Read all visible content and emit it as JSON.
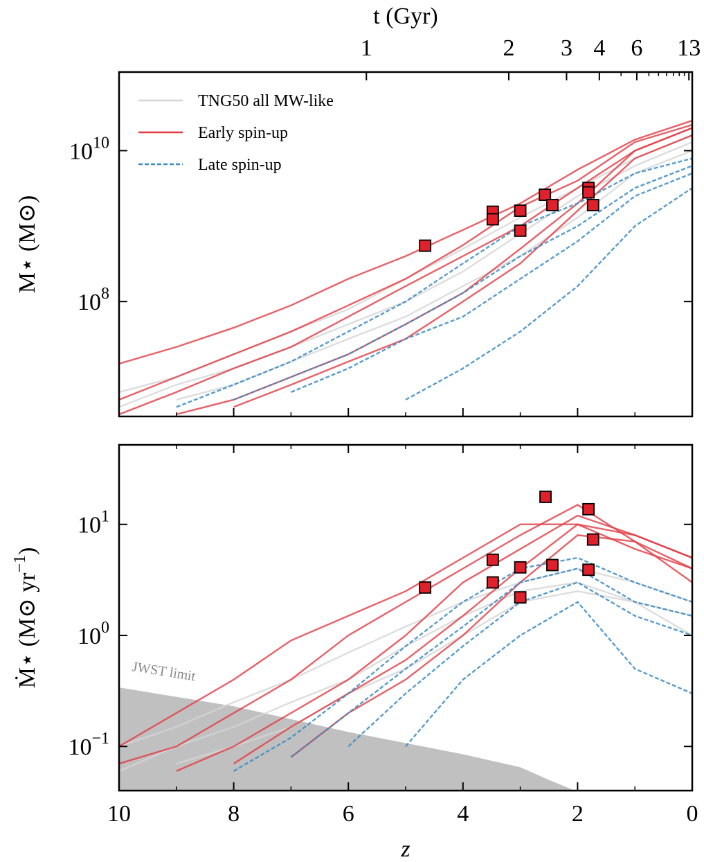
{
  "chart_data": [
    {
      "type": "line",
      "top_xlabel": "t (Gyr)",
      "top_xticks": [
        1,
        2,
        3,
        4,
        6,
        13
      ],
      "top_xminor": [
        5,
        7,
        8,
        9,
        10,
        11,
        12
      ],
      "ylabel": "M⋆ (M⊙)",
      "scale": "log",
      "xlim": [
        10,
        0
      ],
      "ylim": [
        3000000,
        110000000000
      ],
      "xticks": [
        10,
        8,
        6,
        4,
        2,
        0
      ],
      "xminor": [
        9,
        7,
        5,
        3,
        1
      ],
      "yticks": [
        {
          "value": 100000000,
          "label": "10",
          "exponent": "8"
        },
        {
          "value": 10000000000,
          "label": "10",
          "exponent": "10"
        }
      ],
      "legend": "upper left",
      "x": [
        10,
        9,
        8,
        7,
        6,
        5,
        4,
        3,
        2,
        1,
        0
      ],
      "series": [
        {
          "name": "TNG50 all MW-like",
          "color": "#d4d4d4",
          "dash": false,
          "lines": [
            [
              6300000,
              10000000,
              20000000,
              40000000,
              79000000,
              200000000,
              500000000,
              1300000000,
              3200000000,
              7900000000,
              16000000000
            ],
            [
              4000000,
              7900000,
              13000000,
              25000000,
              50000000,
              100000000,
              250000000,
              790000000,
              2500000000,
              6300000000,
              13000000000
            ],
            [
              null,
              5000000,
              7900000,
              16000000,
              32000000,
              63000000,
              160000000,
              400000000,
              1300000000,
              5000000000,
              10000000000
            ]
          ]
        },
        {
          "name": "Early spin-up",
          "color": "#e23a42",
          "dash": false,
          "lines": [
            [
              15000000,
              25000000,
              45000000,
              89000000,
              200000000,
              400000000,
              890000000,
              2000000000,
              5600000000,
              14000000000,
              25000000000
            ],
            [
              5000000,
              10000000,
              20000000,
              40000000,
              89000000,
              200000000,
              560000000,
              1800000000,
              4000000000,
              13000000000,
              22000000000
            ],
            [
              3200000,
              6300000,
              13000000,
              25000000,
              63000000,
              160000000,
              400000000,
              1000000000,
              3200000000,
              10000000000,
              20000000000
            ],
            [
              null,
              3200000,
              5000000,
              10000000,
              20000000,
              50000000,
              130000000,
              500000000,
              2000000000,
              10000000000,
              20000000000
            ],
            [
              null,
              null,
              4000000,
              7900000,
              16000000,
              32000000,
              100000000,
              320000000,
              1600000000,
              7900000000,
              16000000000
            ]
          ]
        },
        {
          "name": "Late spin-up",
          "color": "#3b8bc2",
          "dash": true,
          "lines": [
            [
              null,
              4000000,
              7900000,
              16000000,
              40000000,
              100000000,
              320000000,
              1000000000,
              2000000000,
              5000000000,
              7900000000
            ],
            [
              null,
              null,
              5000000,
              10000000,
              20000000,
              50000000,
              130000000,
              400000000,
              1000000000,
              3200000000,
              6300000000
            ],
            [
              null,
              null,
              null,
              6300000,
              13000000,
              32000000,
              63000000,
              200000000,
              630000000,
              2500000000,
              5000000000
            ],
            [
              null,
              null,
              null,
              null,
              null,
              5000000,
              13000000,
              40000000,
              160000000,
              1000000000,
              3200000000
            ]
          ]
        }
      ],
      "markers": {
        "color": "#e0202a",
        "x": [
          4.66,
          3.48,
          3.48,
          3.0,
          3.0,
          2.57,
          2.44,
          1.81,
          1.81,
          1.73
        ],
        "values": [
          550000000,
          1550000000,
          1230000000,
          1600000000,
          870000000,
          2600000000,
          1900000000,
          3200000000,
          2800000000,
          1900000000
        ]
      }
    },
    {
      "type": "line",
      "ylabel": "Ṁ⋆ (M⊙ yr",
      "ylabel_sup": "−1",
      "ylabel_end": ")",
      "xlabel": "z",
      "scale": "log",
      "xlim": [
        10,
        0
      ],
      "ylim": [
        0.04,
        52
      ],
      "xticks": [
        10,
        8,
        6,
        4,
        2,
        0
      ],
      "xminor": [
        9,
        7,
        5,
        3,
        1
      ],
      "yticks": [
        {
          "value": 0.1,
          "label": "10",
          "exponent": "−1"
        },
        {
          "value": 1,
          "label": "10",
          "exponent": "0"
        },
        {
          "value": 10,
          "label": "10",
          "exponent": "1"
        }
      ],
      "x": [
        10,
        9,
        8,
        7,
        6,
        5,
        4,
        3,
        2,
        1,
        0
      ],
      "shade": {
        "label": "JWST limit",
        "color": "#c0c0c0",
        "x": [
          10,
          8,
          6,
          4,
          3,
          2.5,
          2.05
        ],
        "values": [
          0.34,
          0.23,
          0.135,
          0.085,
          0.065,
          0.05,
          0.04
        ]
      },
      "series": [
        {
          "color": "#d4d4d4",
          "dash": false,
          "lines": [
            [
              0.1,
              0.15,
              0.25,
              0.4,
              0.7,
              1.2,
              2,
              3,
              4,
              3,
              2
            ],
            [
              0.06,
              0.1,
              0.15,
              0.25,
              0.4,
              0.8,
              1.5,
              2.5,
              3,
              2,
              1.5
            ],
            [
              null,
              0.07,
              0.1,
              0.15,
              0.3,
              0.5,
              1,
              2,
              2.5,
              2,
              1
            ]
          ]
        },
        {
          "color": "#e23a42",
          "dash": false,
          "lines": [
            [
              0.1,
              0.2,
              0.4,
              0.9,
              1.5,
              2.5,
              5,
              10,
              10,
              8,
              5
            ],
            [
              0.07,
              0.1,
              0.2,
              0.4,
              1,
              2,
              4,
              8,
              15,
              7,
              4
            ],
            [
              null,
              0.06,
              0.1,
              0.2,
              0.4,
              1,
              3,
              6,
              12,
              8,
              5
            ],
            [
              null,
              null,
              0.07,
              0.15,
              0.3,
              0.6,
              1.5,
              4,
              10,
              6,
              4
            ],
            [
              null,
              null,
              null,
              0.08,
              0.2,
              0.4,
              1,
              3,
              8,
              7,
              3
            ]
          ]
        },
        {
          "color": "#3b8bc2",
          "dash": true,
          "lines": [
            [
              null,
              null,
              0.06,
              0.12,
              0.3,
              0.8,
              2,
              4,
              5,
              3,
              2
            ],
            [
              null,
              null,
              null,
              0.08,
              0.2,
              0.5,
              1.2,
              3,
              4,
              2,
              1.5
            ],
            [
              null,
              null,
              null,
              null,
              0.1,
              0.3,
              0.8,
              2,
              3,
              1.5,
              1
            ],
            [
              null,
              null,
              null,
              null,
              null,
              0.1,
              0.4,
              1,
              2,
              0.5,
              0.3
            ]
          ]
        }
      ],
      "markers": {
        "color": "#e0202a",
        "x": [
          4.66,
          3.48,
          3.48,
          3.0,
          3.0,
          2.56,
          2.44,
          1.81,
          1.73,
          1.81
        ],
        "values": [
          2.7,
          4.8,
          3.0,
          4.1,
          2.2,
          17.7,
          4.3,
          13.7,
          7.3,
          3.9
        ]
      }
    }
  ]
}
